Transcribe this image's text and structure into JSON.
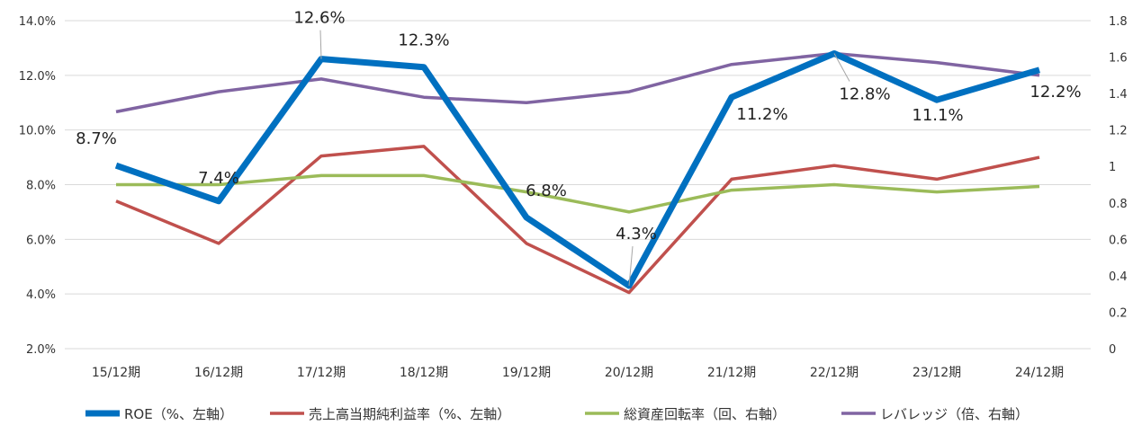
{
  "chart_data": {
    "type": "line",
    "categories": [
      "15/12期",
      "16/12期",
      "17/12期",
      "18/12期",
      "19/12期",
      "20/12期",
      "21/12期",
      "22/12期",
      "23/12期",
      "24/12期"
    ],
    "y_left": {
      "ylim": [
        2.0,
        14.0
      ],
      "ticks": [
        "2.0%",
        "4.0%",
        "6.0%",
        "8.0%",
        "10.0%",
        "12.0%",
        "14.0%"
      ]
    },
    "y_right": {
      "ylim": [
        0,
        1.8
      ],
      "ticks": [
        "0",
        "0.2",
        "0.4",
        "0.6",
        "0.8",
        "1",
        "1.2",
        "1.4",
        "1.6",
        "1.8"
      ]
    },
    "grid": true,
    "legend_position": "bottom",
    "series": [
      {
        "name": "ROE（%、左軸）",
        "axis": "left",
        "color": "#0070C0",
        "values": [
          8.7,
          7.4,
          12.6,
          12.3,
          6.8,
          4.3,
          11.2,
          12.8,
          11.1,
          12.2
        ],
        "labels": [
          "8.7%",
          "7.4%",
          "12.6%",
          "12.3%",
          "6.8%",
          "4.3%",
          "11.2%",
          "12.8%",
          "11.1%",
          "12.2%"
        ]
      },
      {
        "name": "売上高当期純利益率（%、左軸）",
        "axis": "left",
        "color": "#C0504D",
        "values": [
          7.4,
          5.85,
          9.05,
          9.4,
          5.85,
          4.05,
          8.2,
          8.7,
          8.2,
          9.0
        ]
      },
      {
        "name": "総資産回転率（回、右軸）",
        "axis": "right",
        "color": "#9BBB59",
        "values": [
          0.9,
          0.9,
          0.95,
          0.95,
          0.86,
          0.75,
          0.87,
          0.9,
          0.86,
          0.89
        ]
      },
      {
        "name": "レバレッジ（倍、右軸）",
        "axis": "right",
        "color": "#8064A2",
        "values": [
          1.3,
          1.41,
          1.48,
          1.38,
          1.35,
          1.41,
          1.56,
          1.62,
          1.57,
          1.5
        ]
      }
    ]
  }
}
